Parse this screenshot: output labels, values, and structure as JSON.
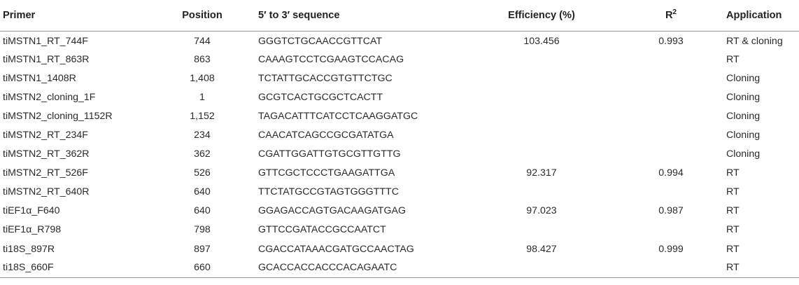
{
  "table": {
    "headers": {
      "primer": "Primer",
      "position": "Position",
      "sequence": "5′ to 3′ sequence",
      "efficiency": "Efficiency (%)",
      "r2_base": "R",
      "r2_sup": "2",
      "application": "Application"
    },
    "rows": [
      {
        "primer": "tiMSTN1_RT_744F",
        "position": "744",
        "sequence": "GGGTCTGCAACCGTTCAT",
        "efficiency": "103.456",
        "r2": "0.993",
        "application": "RT & cloning"
      },
      {
        "primer": "tiMSTN1_RT_863R",
        "position": "863",
        "sequence": "CAAAGTCCTCGAAGTCCACAG",
        "efficiency": "",
        "r2": "",
        "application": "RT"
      },
      {
        "primer": "tiMSTN1_1408R",
        "position": "1,408",
        "sequence": "TCTATTGCACCGTGTTCTGC",
        "efficiency": "",
        "r2": "",
        "application": "Cloning"
      },
      {
        "primer": "tiMSTN2_cloning_1F",
        "position": "1",
        "sequence": "GCGTCACTGCGCTCACTT",
        "efficiency": "",
        "r2": "",
        "application": "Cloning"
      },
      {
        "primer": "tiMSTN2_cloning_1152R",
        "position": "1,152",
        "sequence": "TAGACATTTCATCCTCAAGGATGC",
        "efficiency": "",
        "r2": "",
        "application": "Cloning"
      },
      {
        "primer": "tiMSTN2_RT_234F",
        "position": "234",
        "sequence": "CAACATCAGCCGCGATATGA",
        "efficiency": "",
        "r2": "",
        "application": "Cloning"
      },
      {
        "primer": "tiMSTN2_RT_362R",
        "position": "362",
        "sequence": "CGATTGGATTGTGCGTTGTTG",
        "efficiency": "",
        "r2": "",
        "application": "Cloning"
      },
      {
        "primer": "tiMSTN2_RT_526F",
        "position": "526",
        "sequence": "GTTCGCTCCCTGAAGATTGA",
        "efficiency": "92.317",
        "r2": "0.994",
        "application": "RT"
      },
      {
        "primer": "tiMSTN2_RT_640R",
        "position": "640",
        "sequence": "TTCTATGCCGTAGTGGGTTTC",
        "efficiency": "",
        "r2": "",
        "application": "RT"
      },
      {
        "primer": "tiEF1α_F640",
        "position": "640",
        "sequence": "GGAGACCAGTGACAAGATGAG",
        "efficiency": "97.023",
        "r2": "0.987",
        "application": "RT"
      },
      {
        "primer": "tiEF1α_R798",
        "position": "798",
        "sequence": "GTTCCGATACCGCCAATCT",
        "efficiency": "",
        "r2": "",
        "application": "RT"
      },
      {
        "primer": "ti18S_897R",
        "position": "897",
        "sequence": "CGACCATAAACGATGCCAACTAG",
        "efficiency": "98.427",
        "r2": "0.999",
        "application": "RT"
      },
      {
        "primer": "ti18S_660F",
        "position": "660",
        "sequence": "GCACCACCACCCACAGAATC",
        "efficiency": "",
        "r2": "",
        "application": "RT"
      }
    ]
  }
}
